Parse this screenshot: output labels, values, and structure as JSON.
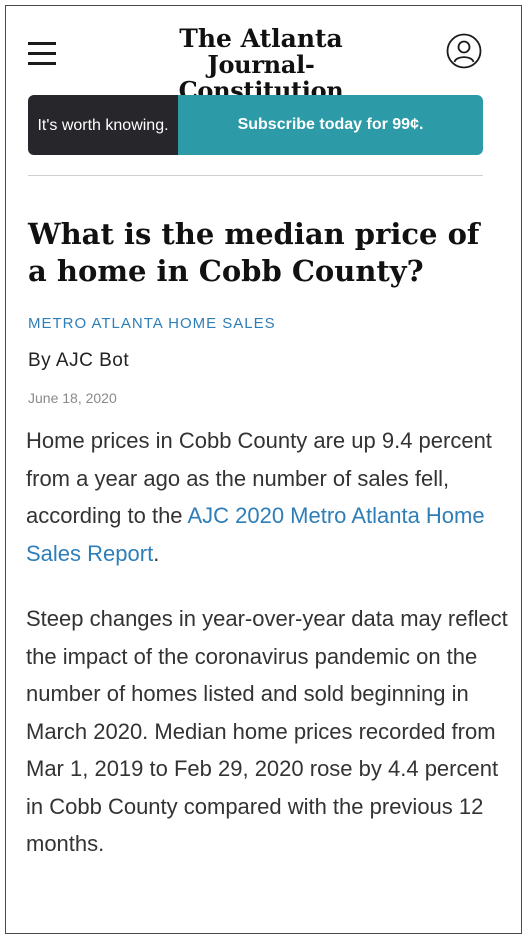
{
  "header": {
    "logo_line1": "The Atlanta",
    "logo_line2": "Journal-Constitution"
  },
  "banner": {
    "tagline": "It's worth knowing.",
    "cta": "Subscribe today for 99¢."
  },
  "article": {
    "headline": "What is the median price of a home in Cobb County?",
    "section": "METRO ATLANTA HOME SALES",
    "byline": "By AJC Bot",
    "date": "June 18, 2020",
    "p1_before": "Home prices in Cobb County are up 9.4 percent from a year ago as the number of sales fell, according to the ",
    "p1_link": "AJC 2020 Metro Atlanta Home Sales Report",
    "p1_after": ".",
    "p2": "Steep changes in year-over-year data may reflect the impact of the coronavirus pandemic on the number of homes listed and sold beginning in March 2020. Median home prices recorded from Mar 1, 2019 to Feb 29, 2020 rose by 4.4 percent in Cobb County compared with the previous 12 months."
  },
  "colors": {
    "link": "#2e7eb8",
    "banner_dark": "#26262b",
    "banner_teal": "#2d9aa8"
  },
  "icons": [
    "menu-icon",
    "account-icon"
  ]
}
